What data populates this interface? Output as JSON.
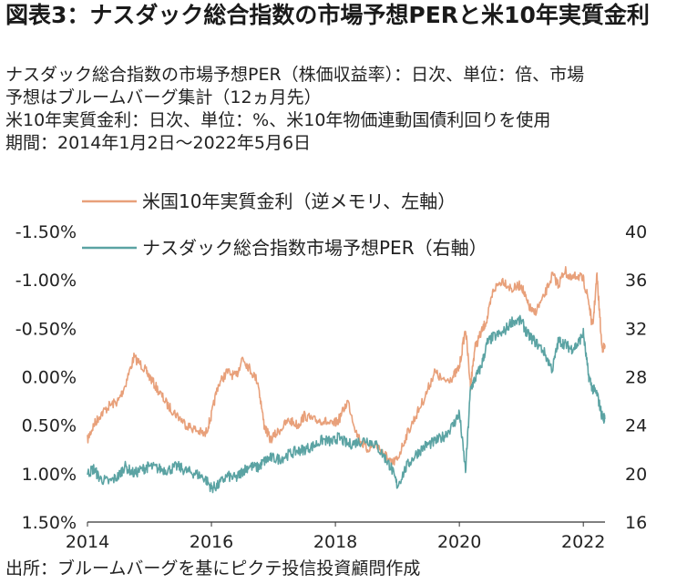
{
  "header": {
    "title": "図表3：ナスダック総合指数の市場予想PERと米10年実質金利",
    "desc_lines": [
      "ナスダック総合指数の市場予想PER（株価収益率）：日次、単位：倍、市場",
      "予想はブルームバーグ集計（12ヵ月先）",
      "米10年実質金利：日次、単位：%、米10年物価連動国債利回りを使用",
      "期間：2014年1月2日～2022年5月6日"
    ]
  },
  "footer": {
    "source": "出所：ブルームバーグを基にピクテ投信投資顧問作成"
  },
  "chart_data": {
    "type": "line",
    "x_tick_labels": [
      "2014",
      "2016",
      "2018",
      "2020",
      "2022"
    ],
    "x_ticks": [
      2014,
      2016,
      2018,
      2020,
      2022
    ],
    "xlim": [
      2014.0,
      2022.35
    ],
    "y_left": {
      "inverted": true,
      "ylim": [
        -1.5,
        1.5
      ],
      "tick_values": [
        -1.5,
        -1.0,
        -0.5,
        0.0,
        0.5,
        1.0,
        1.5
      ],
      "tick_labels": [
        "-1.50%",
        "-1.00%",
        "-0.50%",
        "0.00%",
        "0.50%",
        "1.00%",
        "1.50%"
      ]
    },
    "y_right": {
      "ylim": [
        16,
        40
      ],
      "tick_values": [
        16,
        20,
        24,
        28,
        32,
        36,
        40
      ],
      "tick_labels": [
        "16",
        "20",
        "24",
        "28",
        "32",
        "36",
        "40"
      ]
    },
    "legend_position": "top-left",
    "series": [
      {
        "name": "米国10年実質金利（逆メモリ、左軸）",
        "axis": "left",
        "color": "#E8A07A",
        "x": [
          2014.0,
          2014.1,
          2014.2,
          2014.35,
          2014.5,
          2014.6,
          2014.75,
          2014.9,
          2015.0,
          2015.15,
          2015.3,
          2015.45,
          2015.6,
          2015.75,
          2015.9,
          2016.0,
          2016.1,
          2016.25,
          2016.4,
          2016.5,
          2016.6,
          2016.75,
          2016.85,
          2016.95,
          2017.1,
          2017.25,
          2017.4,
          2017.5,
          2017.65,
          2017.8,
          2017.95,
          2018.05,
          2018.2,
          2018.35,
          2018.5,
          2018.65,
          2018.8,
          2018.9,
          2019.0,
          2019.15,
          2019.3,
          2019.45,
          2019.6,
          2019.75,
          2019.9,
          2020.0,
          2020.1,
          2020.18,
          2020.25,
          2020.35,
          2020.45,
          2020.55,
          2020.7,
          2020.85,
          2021.0,
          2021.1,
          2021.2,
          2021.35,
          2021.5,
          2021.6,
          2021.7,
          2021.8,
          2021.9,
          2022.0,
          2022.08,
          2022.15,
          2022.22,
          2022.3,
          2022.35
        ],
        "values": [
          0.65,
          0.5,
          0.4,
          0.3,
          0.25,
          0.1,
          -0.2,
          -0.1,
          0.0,
          0.15,
          0.3,
          0.4,
          0.5,
          0.55,
          0.6,
          0.4,
          0.1,
          -0.05,
          0.0,
          -0.2,
          -0.1,
          0.05,
          0.5,
          0.65,
          0.55,
          0.45,
          0.5,
          0.4,
          0.45,
          0.45,
          0.5,
          0.45,
          0.25,
          0.6,
          0.75,
          0.7,
          0.8,
          0.9,
          0.85,
          0.6,
          0.4,
          0.2,
          -0.05,
          0.05,
          0.0,
          -0.1,
          -0.5,
          0.1,
          -0.3,
          -0.45,
          -0.6,
          -0.9,
          -1.0,
          -0.9,
          -0.95,
          -0.75,
          -0.65,
          -0.8,
          -1.05,
          -0.95,
          -1.1,
          -1.0,
          -1.05,
          -1.0,
          -0.8,
          -0.5,
          -1.05,
          -0.3,
          -0.3
        ]
      },
      {
        "name": "ナスダック総合指数市場予想PER（右軸）",
        "axis": "right",
        "color": "#5BA3A3",
        "x": [
          2014.0,
          2014.1,
          2014.2,
          2014.35,
          2014.5,
          2014.6,
          2014.75,
          2014.9,
          2015.0,
          2015.15,
          2015.3,
          2015.45,
          2015.6,
          2015.75,
          2015.9,
          2016.0,
          2016.1,
          2016.25,
          2016.4,
          2016.5,
          2016.6,
          2016.75,
          2016.85,
          2016.95,
          2017.1,
          2017.25,
          2017.4,
          2017.5,
          2017.65,
          2017.8,
          2017.95,
          2018.05,
          2018.2,
          2018.35,
          2018.5,
          2018.65,
          2018.8,
          2018.9,
          2019.0,
          2019.15,
          2019.3,
          2019.45,
          2019.6,
          2019.75,
          2019.9,
          2020.0,
          2020.1,
          2020.18,
          2020.25,
          2020.35,
          2020.45,
          2020.55,
          2020.7,
          2020.85,
          2021.0,
          2021.1,
          2021.2,
          2021.35,
          2021.5,
          2021.6,
          2021.7,
          2021.8,
          2021.9,
          2022.0,
          2022.08,
          2022.15,
          2022.22,
          2022.3,
          2022.35
        ],
        "values": [
          20.0,
          20.4,
          19.6,
          19.3,
          19.8,
          20.6,
          20.0,
          20.4,
          20.6,
          20.4,
          20.3,
          20.6,
          20.2,
          20.0,
          19.6,
          18.8,
          19.0,
          19.8,
          19.6,
          20.2,
          20.6,
          20.5,
          21.0,
          21.3,
          21.2,
          21.6,
          21.9,
          22.0,
          22.3,
          22.8,
          22.6,
          23.0,
          22.4,
          22.6,
          22.8,
          22.4,
          21.3,
          20.5,
          19.0,
          20.6,
          21.6,
          22.3,
          22.6,
          23.1,
          24.0,
          25.0,
          20.2,
          27.0,
          27.8,
          28.8,
          30.8,
          31.3,
          31.6,
          32.6,
          32.6,
          31.5,
          31.0,
          30.2,
          28.6,
          31.0,
          30.7,
          30.3,
          30.6,
          31.6,
          28.2,
          27.0,
          26.6,
          24.8,
          24.5
        ]
      }
    ]
  }
}
